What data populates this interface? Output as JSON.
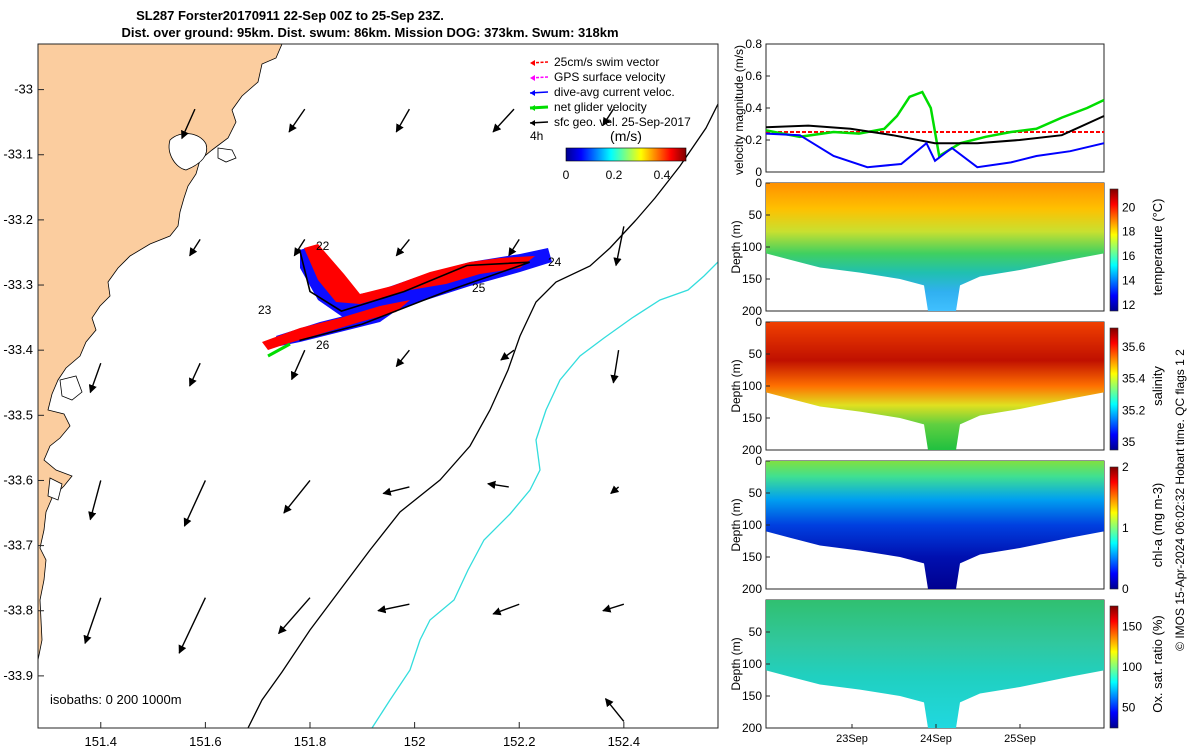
{
  "title": {
    "line1": "SL287 Forster20170911 22-Sep 00Z to 25-Sep 23Z.",
    "line2": "Dist. over ground: 95km. Dist. swum: 86km. Mission DOG: 373km. Swum: 318km"
  },
  "side_label": "© IMOS 15-Apr-2024 06:02:32 Hobart time. QC flags 1  2",
  "colors": {
    "land": "#fbcd9f",
    "swim_vector": "#ff0000",
    "gps_velocity": "#ff00ff",
    "dive_avg": "#0000ff",
    "net_glider": "#00dd00",
    "geo_vel": "#000000",
    "isobath_200": "#000000",
    "isobath_1000": "#33dddd",
    "track": "#000000"
  },
  "chart_data": [
    {
      "type": "scatter",
      "subtype": "map",
      "x_ticks": [
        "151.4",
        "151.6",
        "151.8",
        "152",
        "152.2",
        "152.4"
      ],
      "y_ticks": [
        "-33",
        "-33.1",
        "-33.2",
        "-33.3",
        "-33.4",
        "-33.5",
        "-33.6",
        "-33.7",
        "-33.8",
        "-33.9"
      ],
      "xlim": [
        151.28,
        152.58
      ],
      "ylim": [
        -33.98,
        -32.93
      ],
      "legend": [
        {
          "label": "25cm/s swim vector",
          "color": "#ff0000"
        },
        {
          "label": "GPS surface velocity",
          "color": "#ff00ff"
        },
        {
          "label": "dive-avg current veloc.",
          "color": "#0000ff"
        },
        {
          "label": "net glider velocity",
          "color": "#00dd00"
        },
        {
          "label": "sfc geo. vel. 25-Sep-2017",
          "color": "#000000"
        }
      ],
      "legend_note": "4h",
      "colorbar": {
        "label": "(m/s)",
        "ticks": [
          "0",
          "0.2",
          "0.4"
        ],
        "range": [
          0,
          0.5
        ]
      },
      "isobaths_label": "isobaths: 0   200  1000m",
      "track_labels": [
        "22",
        "23",
        "24",
        "25",
        "26"
      ],
      "track": [
        [
          151.78,
          -33.245
        ],
        [
          151.8,
          -33.31
        ],
        [
          151.86,
          -33.34
        ],
        [
          151.98,
          -33.31
        ],
        [
          152.1,
          -33.27
        ],
        [
          152.22,
          -33.265
        ],
        [
          152.06,
          -33.31
        ],
        [
          151.9,
          -33.36
        ],
        [
          151.78,
          -33.385
        ]
      ],
      "geo_vectors": [
        [
          151.58,
          -33.03,
          -0.025,
          -0.045
        ],
        [
          151.79,
          -33.03,
          -0.03,
          -0.035
        ],
        [
          151.99,
          -33.03,
          -0.025,
          -0.035
        ],
        [
          152.19,
          -33.03,
          -0.04,
          -0.035
        ],
        [
          152.38,
          -33.03,
          -0.02,
          -0.025
        ],
        [
          151.59,
          -33.23,
          -0.02,
          -0.025
        ],
        [
          151.79,
          -33.23,
          -0.02,
          -0.025
        ],
        [
          151.99,
          -33.23,
          -0.025,
          -0.025
        ],
        [
          152.2,
          -33.23,
          -0.02,
          -0.025
        ],
        [
          152.4,
          -33.21,
          -0.015,
          -0.06
        ],
        [
          151.4,
          -33.42,
          -0.02,
          -0.045
        ],
        [
          151.59,
          -33.42,
          -0.02,
          -0.035
        ],
        [
          151.79,
          -33.4,
          -0.025,
          -0.045
        ],
        [
          151.99,
          -33.4,
          -0.025,
          -0.025
        ],
        [
          152.19,
          -33.4,
          -0.025,
          -0.015
        ],
        [
          152.39,
          -33.4,
          -0.01,
          -0.05
        ],
        [
          151.4,
          -33.6,
          -0.02,
          -0.06
        ],
        [
          151.6,
          -33.6,
          -0.04,
          -0.07
        ],
        [
          151.8,
          -33.6,
          -0.05,
          -0.05
        ],
        [
          151.99,
          -33.61,
          -0.05,
          -0.01
        ],
        [
          152.18,
          -33.61,
          -0.04,
          0.005
        ],
        [
          152.39,
          -33.61,
          -0.015,
          -0.01
        ],
        [
          151.4,
          -33.78,
          -0.03,
          -0.07
        ],
        [
          151.6,
          -33.78,
          -0.05,
          -0.085
        ],
        [
          151.8,
          -33.78,
          -0.06,
          -0.055
        ],
        [
          151.99,
          -33.79,
          -0.06,
          -0.01
        ],
        [
          152.2,
          -33.79,
          -0.05,
          -0.015
        ],
        [
          152.4,
          -33.79,
          -0.04,
          -0.01
        ],
        [
          152.2,
          -33.99,
          -0.05,
          0.025
        ],
        [
          152.4,
          -33.97,
          -0.035,
          0.035
        ]
      ]
    },
    {
      "type": "line",
      "ylabel": "velocity magnitude (m/s)",
      "xlim": [
        22.0,
        26.0
      ],
      "ylim": [
        0,
        0.8
      ],
      "y_ticks": [
        "0",
        "0.2",
        "0.4",
        "0.6",
        "0.8"
      ],
      "series": [
        {
          "color": "#ff0000",
          "x": [
            22.0,
            26.0
          ],
          "y": [
            0.25,
            0.25
          ]
        },
        {
          "color": "#00dd00",
          "x": [
            22.0,
            22.4,
            22.8,
            23.1,
            23.4,
            23.55,
            23.7,
            23.85,
            23.95,
            24.05,
            24.3,
            24.6,
            24.9,
            25.2,
            25.5,
            25.8,
            26.0
          ],
          "y": [
            0.26,
            0.22,
            0.25,
            0.24,
            0.27,
            0.35,
            0.47,
            0.5,
            0.4,
            0.1,
            0.18,
            0.22,
            0.25,
            0.27,
            0.34,
            0.4,
            0.45
          ]
        },
        {
          "color": "#000000",
          "x": [
            22.0,
            22.5,
            23.0,
            23.5,
            24.0,
            24.5,
            25.0,
            25.5,
            26.0
          ],
          "y": [
            0.28,
            0.29,
            0.27,
            0.23,
            0.18,
            0.18,
            0.2,
            0.23,
            0.35
          ]
        },
        {
          "color": "#0000ff",
          "x": [
            22.0,
            22.4,
            22.8,
            23.2,
            23.6,
            23.9,
            24.0,
            24.2,
            24.5,
            24.9,
            25.2,
            25.6,
            26.0
          ],
          "y": [
            0.24,
            0.23,
            0.1,
            0.03,
            0.05,
            0.18,
            0.07,
            0.15,
            0.03,
            0.06,
            0.1,
            0.13,
            0.18
          ]
        }
      ]
    },
    {
      "type": "heatmap",
      "variable": "temperature",
      "colorbar_label": "temperature (°C)",
      "ylabel": "Depth (m)",
      "depth_ticks": [
        "0",
        "50",
        "100",
        "150",
        "200"
      ],
      "ylim": [
        200,
        0
      ],
      "colorbar_ticks": [
        "12",
        "14",
        "16",
        "18",
        "20"
      ],
      "clim": [
        11.5,
        21.5
      ]
    },
    {
      "type": "heatmap",
      "variable": "salinity",
      "colorbar_label": "salinity",
      "ylabel": "Depth (m)",
      "depth_ticks": [
        "0",
        "50",
        "100",
        "150",
        "200"
      ],
      "ylim": [
        200,
        0
      ],
      "colorbar_ticks": [
        "35",
        "35.2",
        "35.4",
        "35.6"
      ],
      "clim": [
        34.95,
        35.72
      ]
    },
    {
      "type": "heatmap",
      "variable": "chl-a",
      "colorbar_label": "chl-a (mg m-3)",
      "ylabel": "Depth (m)",
      "depth_ticks": [
        "0",
        "50",
        "100",
        "150",
        "200"
      ],
      "ylim": [
        200,
        0
      ],
      "colorbar_ticks": [
        "0",
        "1",
        "2"
      ],
      "clim": [
        0,
        2
      ]
    },
    {
      "type": "heatmap",
      "variable": "oxygen saturation",
      "colorbar_label": "Ox. sat. ratio (%)",
      "ylabel": "Depth (m)",
      "depth_ticks": [
        "50",
        "100",
        "150",
        "200"
      ],
      "ylim": [
        200,
        0
      ],
      "colorbar_ticks": [
        "50",
        "100",
        "150"
      ],
      "clim": [
        25,
        175
      ],
      "x_ticks": [
        "23Sep",
        "24Sep",
        "25Sep"
      ]
    }
  ]
}
